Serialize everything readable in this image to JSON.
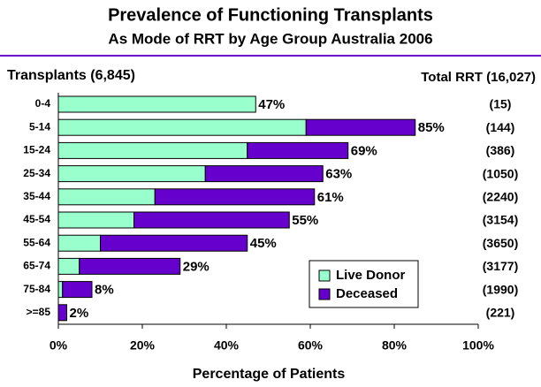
{
  "chart_data": {
    "type": "stacked-barh",
    "title": "Prevalence of Functioning Transplants",
    "subtitle": "As Mode of RRT by Age Group  Australia 2006",
    "left_header": "Transplants (6,845)",
    "right_header": "Total RRT (16,027)",
    "x_label": "Percentage of Patients",
    "categories": [
      "0-4",
      "5-14",
      "15-24",
      "25-34",
      "35-44",
      "45-54",
      "55-64",
      "65-74",
      "75-84",
      ">=85"
    ],
    "series": [
      {
        "name": "Live Donor",
        "color": "#99ffcc",
        "values": [
          47,
          59,
          45,
          35,
          23,
          18,
          10,
          5,
          1,
          0
        ]
      },
      {
        "name": "Deceased",
        "color": "#6600cc",
        "values": [
          0,
          26,
          24,
          28,
          38,
          37,
          35,
          24,
          7,
          2
        ]
      }
    ],
    "totals": {
      "values": [
        47,
        85,
        69,
        63,
        61,
        55,
        45,
        29,
        8,
        2
      ],
      "value_labels": [
        "47%",
        "85%",
        "69%",
        "63%",
        "61%",
        "55%",
        "45%",
        "29%",
        "8%",
        "2%"
      ]
    },
    "rrt_counts": [
      "(15)",
      "(144)",
      "(386)",
      "(1050)",
      "(2240)",
      "(3154)",
      "(3650)",
      "(3177)",
      "(1990)",
      "(221)"
    ],
    "xlim": [
      0,
      100
    ],
    "xticks": [
      {
        "value": 0,
        "label": "0%"
      },
      {
        "value": 20,
        "label": "20%"
      },
      {
        "value": 40,
        "label": "40%"
      },
      {
        "value": 60,
        "label": "60%"
      },
      {
        "value": 80,
        "label": "80%"
      },
      {
        "value": 100,
        "label": "100%"
      }
    ],
    "legend": "lower right"
  }
}
